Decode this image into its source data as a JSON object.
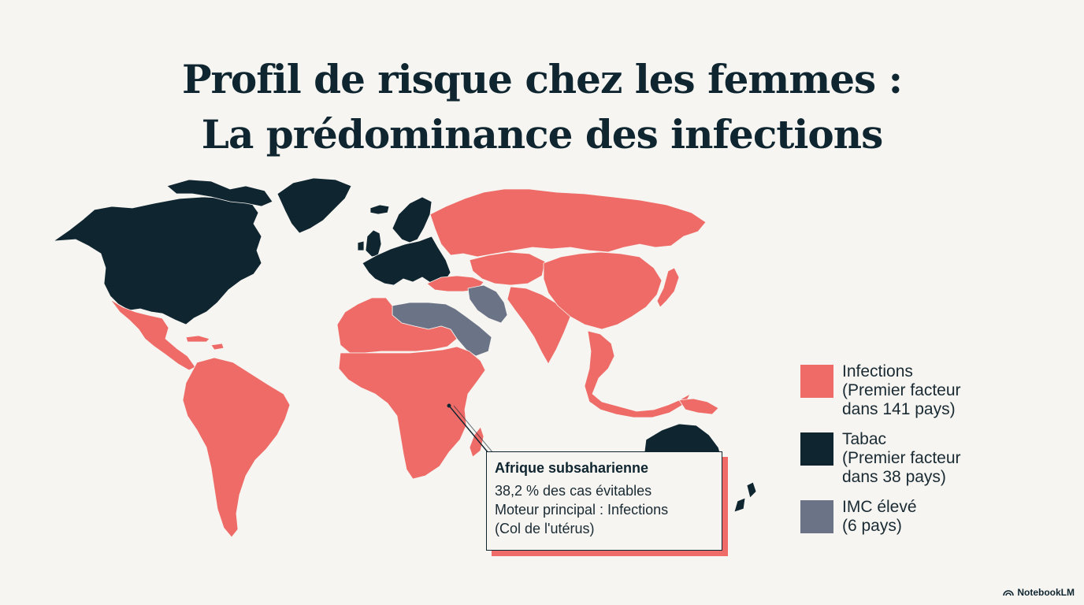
{
  "title": {
    "line1": "Profil de risque chez les femmes :",
    "line2": "La prédominance des infections"
  },
  "colors": {
    "infections": "#ef6b67",
    "tabac": "#0f2530",
    "imc": "#6b7386",
    "background": "#f6f5f1",
    "border": "#f6f5f1"
  },
  "legend": [
    {
      "key": "infections",
      "label": "Infections\n(Premier facteur\ndans 141 pays)"
    },
    {
      "key": "tabac",
      "label": "Tabac\n(Premier facteur\ndans 38 pays)"
    },
    {
      "key": "imc",
      "label": "IMC élevé\n(6 pays)"
    }
  ],
  "callout": {
    "region": "Afrique subsaharienne",
    "line1": "38,2 % des cas évitables",
    "line2": "Moteur principal : Infections",
    "line3": "(Col de l'utérus)"
  },
  "brand": "NotebookLM",
  "map": {
    "regions": [
      {
        "name": "north-america",
        "category": "tabac"
      },
      {
        "name": "greenland",
        "category": "tabac"
      },
      {
        "name": "arctic-islands",
        "category": "tabac"
      },
      {
        "name": "mexico-central-america",
        "category": "infections"
      },
      {
        "name": "caribbean",
        "category": "infections"
      },
      {
        "name": "south-america",
        "category": "infections"
      },
      {
        "name": "europe",
        "category": "tabac"
      },
      {
        "name": "scandinavia",
        "category": "tabac"
      },
      {
        "name": "british-isles",
        "category": "tabac"
      },
      {
        "name": "iceland",
        "category": "tabac"
      },
      {
        "name": "russia",
        "category": "infections"
      },
      {
        "name": "turkey-caucasus",
        "category": "infections"
      },
      {
        "name": "central-asia",
        "category": "infections"
      },
      {
        "name": "north-africa",
        "category": "infections"
      },
      {
        "name": "egypt-libya-middle-east",
        "category": "imc"
      },
      {
        "name": "iran",
        "category": "imc"
      },
      {
        "name": "sub-saharan-africa",
        "category": "infections"
      },
      {
        "name": "madagascar",
        "category": "infections"
      },
      {
        "name": "south-asia",
        "category": "infections"
      },
      {
        "name": "east-asia",
        "category": "infections"
      },
      {
        "name": "japan",
        "category": "infections"
      },
      {
        "name": "southeast-asia",
        "category": "infections"
      },
      {
        "name": "australia",
        "category": "tabac"
      },
      {
        "name": "new-zealand",
        "category": "tabac"
      },
      {
        "name": "papua-new-guinea",
        "category": "infections"
      }
    ]
  }
}
